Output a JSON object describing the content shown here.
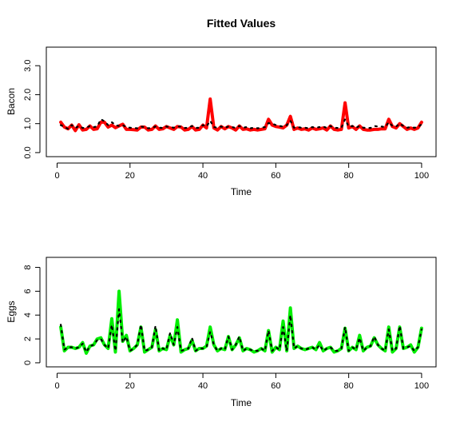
{
  "title": "Fitted Values",
  "chart_data": [
    {
      "type": "line",
      "title": "Fitted Values",
      "xlabel": "Time",
      "ylabel": "Bacon",
      "xlim": [
        1,
        100
      ],
      "ylim": [
        0,
        3.5
      ],
      "xticks": [
        0,
        20,
        40,
        60,
        80,
        100
      ],
      "yticks": [
        0,
        1,
        2,
        3
      ],
      "ytick_labels": [
        "0.0",
        "1.0",
        "2.0",
        "3.0"
      ],
      "grid": false,
      "series": [
        {
          "color": "#ff0000",
          "style": "solid-thick",
          "values": [
            1.05,
            0.88,
            0.82,
            0.95,
            0.76,
            0.96,
            0.78,
            0.8,
            0.92,
            0.8,
            0.82,
            1.05,
            1.05,
            0.88,
            0.95,
            0.86,
            0.92,
            0.98,
            0.8,
            0.8,
            0.79,
            0.78,
            0.88,
            0.88,
            0.78,
            0.8,
            0.92,
            0.8,
            0.82,
            0.9,
            0.85,
            0.8,
            0.9,
            0.88,
            0.78,
            0.8,
            0.9,
            0.78,
            0.8,
            0.95,
            0.85,
            1.85,
            0.85,
            0.78,
            0.9,
            0.82,
            0.9,
            0.85,
            0.78,
            0.92,
            0.8,
            0.82,
            0.78,
            0.8,
            0.78,
            0.8,
            0.82,
            1.15,
            0.95,
            0.9,
            0.88,
            0.85,
            0.95,
            1.25,
            0.8,
            0.85,
            0.8,
            0.82,
            0.78,
            0.85,
            0.8,
            0.82,
            0.85,
            0.78,
            0.92,
            0.8,
            0.78,
            0.8,
            1.72,
            0.85,
            0.9,
            0.8,
            0.92,
            0.8,
            0.78,
            0.78,
            0.8,
            0.8,
            0.82,
            0.82,
            1.15,
            0.9,
            0.85,
            1.0,
            0.9,
            0.8,
            0.85,
            0.8,
            0.85,
            1.05
          ]
        },
        {
          "color": "#000000",
          "style": "dotted",
          "values": [
            0.95,
            0.88,
            0.82,
            0.95,
            0.85,
            0.92,
            0.85,
            0.86,
            0.92,
            0.88,
            0.9,
            1.15,
            1.08,
            0.95,
            1.05,
            0.95,
            0.92,
            0.95,
            0.88,
            0.86,
            0.85,
            0.84,
            0.9,
            0.88,
            0.84,
            0.85,
            0.9,
            0.86,
            0.85,
            0.9,
            0.88,
            0.86,
            0.9,
            0.9,
            0.85,
            0.86,
            0.92,
            0.85,
            0.86,
            0.95,
            0.9,
            1.1,
            0.88,
            0.86,
            0.9,
            0.86,
            0.9,
            0.88,
            0.85,
            0.92,
            0.86,
            0.88,
            0.84,
            0.86,
            0.84,
            0.86,
            0.88,
            1.02,
            1.0,
            0.95,
            0.92,
            0.9,
            0.95,
            1.1,
            0.86,
            0.88,
            0.86,
            0.86,
            0.84,
            0.88,
            0.86,
            0.88,
            0.9,
            0.85,
            0.92,
            0.86,
            0.85,
            0.86,
            1.15,
            0.9,
            0.92,
            0.86,
            0.92,
            0.86,
            0.85,
            0.85,
            0.92,
            0.9,
            0.9,
            0.88,
            1.05,
            0.92,
            0.9,
            1.0,
            0.92,
            0.86,
            0.88,
            0.86,
            0.88,
            0.98
          ]
        }
      ]
    },
    {
      "type": "line",
      "xlabel": "Time",
      "ylabel": "Eggs",
      "xlim": [
        1,
        100
      ],
      "ylim": [
        0,
        8.5
      ],
      "xticks": [
        0,
        20,
        40,
        60,
        80,
        100
      ],
      "yticks": [
        0,
        2,
        4,
        6,
        8
      ],
      "ytick_labels": [
        "0",
        "2",
        "4",
        "6",
        "8"
      ],
      "grid": false,
      "series": [
        {
          "color": "#00ee00",
          "style": "solid-thick",
          "values": [
            3.0,
            1.0,
            1.3,
            1.3,
            1.2,
            1.3,
            1.7,
            0.8,
            1.4,
            1.5,
            2.0,
            2.1,
            1.5,
            1.2,
            3.7,
            0.9,
            6.0,
            1.8,
            2.3,
            1.0,
            1.2,
            1.5,
            3.0,
            0.9,
            1.1,
            1.3,
            2.8,
            1.0,
            1.2,
            1.1,
            2.3,
            1.5,
            3.6,
            0.9,
            1.1,
            1.2,
            1.9,
            1.0,
            1.2,
            1.2,
            1.4,
            3.0,
            1.5,
            1.0,
            1.2,
            1.1,
            2.2,
            1.1,
            1.5,
            2.1,
            1.0,
            1.2,
            1.1,
            0.9,
            1.0,
            1.2,
            1.0,
            2.7,
            0.9,
            1.3,
            1.1,
            3.5,
            1.0,
            4.6,
            1.2,
            1.4,
            1.2,
            1.1,
            1.2,
            1.3,
            1.1,
            1.7,
            1.0,
            1.2,
            1.3,
            0.9,
            1.0,
            1.2,
            2.9,
            1.0,
            1.3,
            1.1,
            2.3,
            1.0,
            1.3,
            1.4,
            2.1,
            1.5,
            1.2,
            1.0,
            3.0,
            0.9,
            1.2,
            3.0,
            1.2,
            1.3,
            1.5,
            0.9,
            1.3,
            2.9
          ]
        },
        {
          "color": "#000000",
          "style": "dotted",
          "values": [
            3.2,
            1.1,
            1.3,
            1.3,
            1.2,
            1.3,
            1.6,
            0.9,
            1.4,
            1.5,
            1.9,
            2.0,
            1.5,
            1.2,
            3.2,
            1.0,
            4.5,
            1.7,
            2.2,
            1.0,
            1.2,
            1.5,
            3.2,
            1.0,
            1.1,
            1.3,
            3.1,
            1.0,
            1.2,
            1.1,
            2.5,
            1.5,
            3.0,
            1.0,
            1.1,
            1.2,
            2.1,
            1.0,
            1.2,
            1.2,
            1.3,
            2.6,
            1.5,
            1.0,
            1.2,
            1.1,
            2.2,
            1.1,
            1.5,
            2.2,
            1.0,
            1.2,
            1.1,
            1.0,
            1.0,
            1.2,
            1.0,
            2.7,
            1.0,
            1.3,
            1.1,
            3.0,
            1.0,
            4.0,
            1.2,
            1.4,
            1.2,
            1.1,
            1.2,
            1.3,
            1.1,
            1.5,
            1.0,
            1.2,
            1.3,
            1.0,
            1.0,
            1.2,
            3.0,
            1.0,
            1.3,
            1.1,
            2.1,
            1.0,
            1.3,
            1.4,
            2.2,
            1.5,
            1.2,
            1.0,
            2.8,
            1.0,
            1.2,
            3.1,
            1.2,
            1.3,
            1.4,
            1.0,
            1.3,
            2.8
          ]
        }
      ]
    }
  ]
}
